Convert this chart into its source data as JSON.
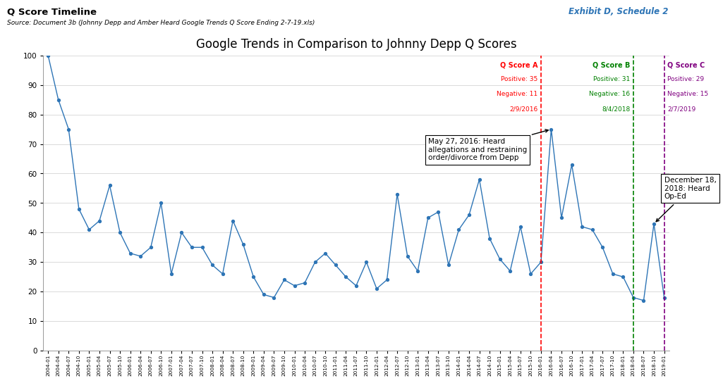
{
  "title": "Google Trends in Comparison to Johnny Depp Q Scores",
  "header_title": "Q Score Timeline",
  "source_text": "Source: Document 3b (Johnny Depp and Amber Heard Google Trends Q Score Ending 2-7-19.xls)",
  "exhibit_text": "Exhibit D, Schedule 2",
  "x_labels": [
    "2004-01",
    "2004-04",
    "2004-07",
    "2004-10",
    "2005-01",
    "2005-04",
    "2005-07",
    "2005-10",
    "2006-01",
    "2006-04",
    "2006-07",
    "2006-10",
    "2007-01",
    "2007-04",
    "2007-07",
    "2007-10",
    "2008-01",
    "2008-04",
    "2008-07",
    "2008-10",
    "2009-01",
    "2009-04",
    "2009-07",
    "2009-10",
    "2010-01",
    "2010-04",
    "2010-07",
    "2010-10",
    "2011-01",
    "2011-04",
    "2011-07",
    "2011-10",
    "2012-01",
    "2012-04",
    "2012-07",
    "2012-10",
    "2013-01",
    "2013-04",
    "2013-07",
    "2013-10",
    "2014-01",
    "2014-04",
    "2014-07",
    "2014-10",
    "2015-01",
    "2015-04",
    "2015-07",
    "2015-10",
    "2016-01",
    "2016-04",
    "2016-07",
    "2016-10",
    "2017-01",
    "2017-04",
    "2017-07",
    "2017-10",
    "2018-01",
    "2018-04",
    "2018-07",
    "2018-10",
    "2019-01"
  ],
  "values": [
    100,
    85,
    75,
    48,
    41,
    44,
    56,
    40,
    33,
    32,
    35,
    50,
    26,
    40,
    35,
    35,
    29,
    26,
    44,
    36,
    25,
    19,
    18,
    24,
    22,
    23,
    30,
    33,
    29,
    25,
    22,
    30,
    21,
    24,
    53,
    32,
    27,
    45,
    47,
    29,
    41,
    46,
    58,
    38,
    31,
    27,
    42,
    26,
    30,
    75,
    45,
    63,
    42,
    41,
    35,
    26,
    25,
    18,
    17,
    43,
    18
  ],
  "line_color": "#2E75B6",
  "marker_color": "#2E75B6",
  "vline_A_label": "2016-01",
  "vline_A_color": "red",
  "vline_B_label": "2018-04",
  "vline_B_color": "green",
  "vline_C_label": "2019-01",
  "vline_C_color": "purple",
  "annotation1_text": "May 27, 2016: Heard\nallegations and restraining\norder/divorce from Depp",
  "annotation2_text": "December 18,\n2018: Heard\nOp-Ed",
  "ylim": [
    0,
    100
  ],
  "yticks": [
    0,
    10,
    20,
    30,
    40,
    50,
    60,
    70,
    80,
    90,
    100
  ],
  "background_color": "#ffffff"
}
